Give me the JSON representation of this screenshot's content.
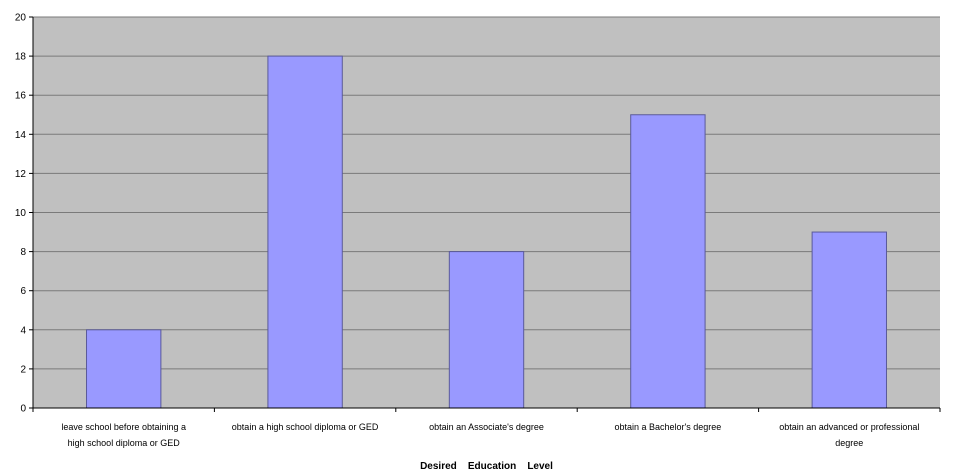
{
  "chart_data": {
    "type": "bar",
    "categories": [
      [
        "leave school before obtaining a",
        "high school diploma or GED"
      ],
      [
        "obtain a high school diploma or GED"
      ],
      [
        "obtain an Associate's degree"
      ],
      [
        "obtain a Bachelor's degree"
      ],
      [
        "obtain an advanced or professional",
        "degree"
      ]
    ],
    "values": [
      4,
      18,
      8,
      15,
      9
    ],
    "title": "",
    "xlabel": "Desired    Education    Level",
    "ylabel": "",
    "ylim": [
      0,
      20
    ],
    "yticks": [
      0,
      2,
      4,
      6,
      8,
      10,
      12,
      14,
      16,
      18,
      20
    ],
    "grid": true,
    "legend": "none",
    "colors": {
      "bar": "#9999ff",
      "plot_background": "#c0c0c0",
      "gridline": "#7a7a7a"
    }
  }
}
